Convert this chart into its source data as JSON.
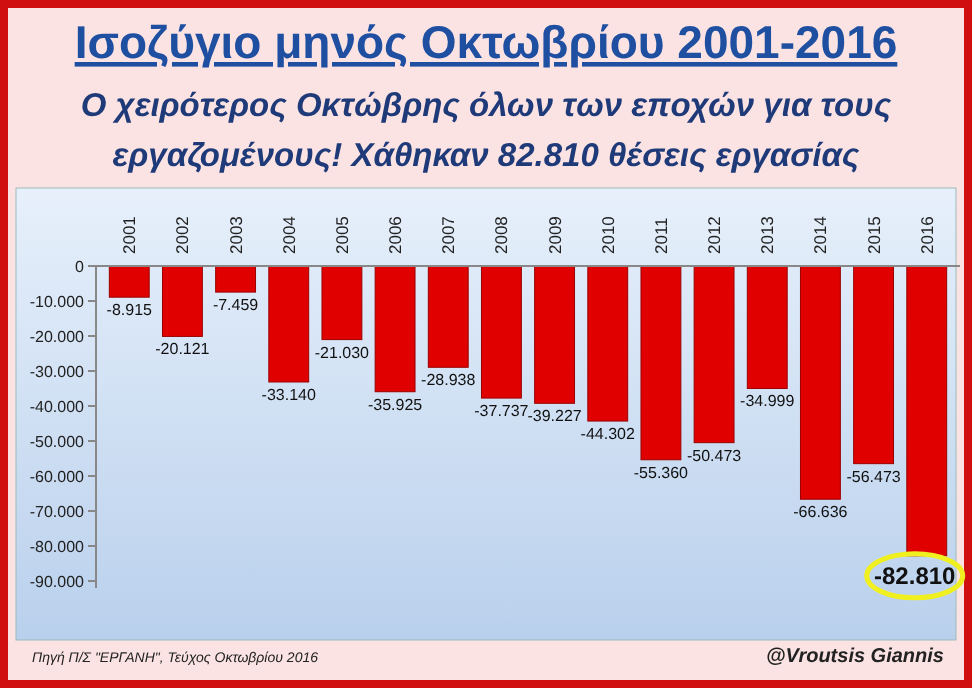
{
  "chart_data": {
    "type": "bar",
    "title": "Ισοζύγιο μηνός Οκτωβρίου 2001-2016",
    "subtitle": "Ο χειρότερος Οκτώβρης όλων των εποχών για τους εργαζομένους! Χάθηκαν 82.810 θέσεις εργασίας",
    "categories": [
      "2001",
      "2002",
      "2003",
      "2004",
      "2005",
      "2006",
      "2007",
      "2008",
      "2009",
      "2010",
      "2011",
      "2012",
      "2013",
      "2014",
      "2015",
      "2016"
    ],
    "values": [
      -8915,
      -20121,
      -7459,
      -33140,
      -21030,
      -35925,
      -28938,
      -37737,
      -39227,
      -44302,
      -55360,
      -50473,
      -34999,
      -66636,
      -56473,
      -82810
    ],
    "value_labels": [
      "-8.915",
      "-20.121",
      "-7.459",
      "-33.140",
      "-21.030",
      "-35.925",
      "-28.938",
      "-37.737",
      "-39.227",
      "-44.302",
      "-55.360",
      "-50.473",
      "-34.999",
      "-66.636",
      "-56.473",
      "-82.810"
    ],
    "color": "#e00000",
    "ylim": [
      -92000,
      0
    ],
    "yticks": [
      {
        "value": 0,
        "label": "0"
      },
      {
        "value": -10000,
        "label": "-10.000"
      },
      {
        "value": -20000,
        "label": "-20.000"
      },
      {
        "value": -30000,
        "label": "-30.000"
      },
      {
        "value": -40000,
        "label": "-40.000"
      },
      {
        "value": -50000,
        "label": "-50.000"
      },
      {
        "value": -60000,
        "label": "-60.000"
      },
      {
        "value": -70000,
        "label": "-70.000"
      },
      {
        "value": -80000,
        "label": "-80.000"
      },
      {
        "value": -90000,
        "label": "-90.000"
      }
    ],
    "annotations": [
      "Πηγή Π/Σ \"ΕΡΓΑΝΗ\", Τεύχος Οκτωβρίου 2016",
      "@Vroutsis Giannis"
    ]
  }
}
